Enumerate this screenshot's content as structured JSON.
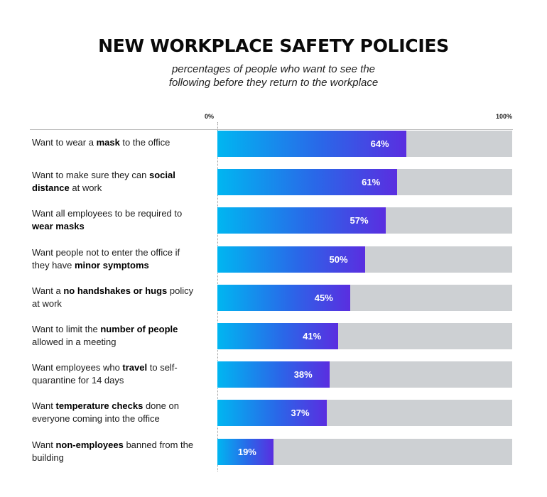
{
  "chart_data": {
    "type": "bar",
    "orientation": "horizontal",
    "title": "NEW WORKPLACE SAFETY POLICIES",
    "subtitle_lines": [
      "percentages of people who want to see the",
      "following before they return to the workplace"
    ],
    "axis": {
      "min_label": "0%",
      "max_label": "100%",
      "xlim": [
        0,
        100
      ]
    },
    "categories": [
      [
        {
          "t": "Want to wear a "
        },
        {
          "t": "mask",
          "b": true
        },
        {
          "t": " to the office"
        }
      ],
      [
        {
          "t": "Want to make sure they can "
        },
        {
          "t": "social distance",
          "b": true
        },
        {
          "t": " at work"
        }
      ],
      [
        {
          "t": "Want all employees to be required to "
        },
        {
          "t": "wear masks",
          "b": true
        }
      ],
      [
        {
          "t": "Want people not to enter the office if they have "
        },
        {
          "t": "minor symptoms",
          "b": true
        }
      ],
      [
        {
          "t": "Want a "
        },
        {
          "t": "no handshakes or hugs",
          "b": true
        },
        {
          "t": " policy at work"
        }
      ],
      [
        {
          "t": "Want to limit the "
        },
        {
          "t": "number of people",
          "b": true
        },
        {
          "t": " allowed in a meeting"
        }
      ],
      [
        {
          "t": "Want employees who "
        },
        {
          "t": "travel",
          "b": true
        },
        {
          "t": " to self-quarantine for 14 days"
        }
      ],
      [
        {
          "t": "Want "
        },
        {
          "t": "temperature checks",
          "b": true
        },
        {
          "t": " done on everyone coming into the office"
        }
      ],
      [
        {
          "t": "Want "
        },
        {
          "t": "non-employees",
          "b": true
        },
        {
          "t": " banned from the building"
        }
      ]
    ],
    "values": [
      64,
      61,
      57,
      50,
      45,
      41,
      38,
      37,
      19
    ],
    "value_labels": [
      "64%",
      "61%",
      "57%",
      "50%",
      "45%",
      "41%",
      "38%",
      "37%",
      "19%"
    ],
    "colors": {
      "fill_start": "#00b6f1",
      "fill_end": "#5a2ee0",
      "track": "#cdd0d3"
    }
  }
}
